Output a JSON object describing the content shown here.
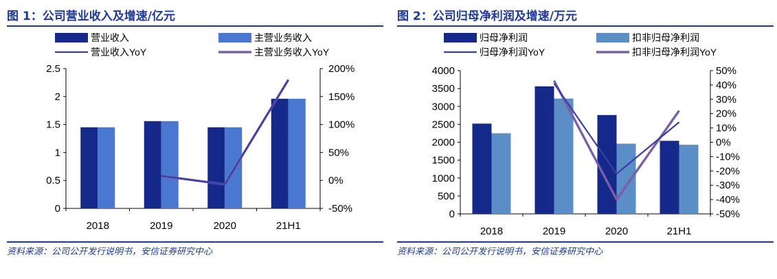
{
  "panels": [
    {
      "title": "图 1：公司营业收入及增速/亿元",
      "source": "资料来源：公司公开发行说明书，安信证券研究中心"
    },
    {
      "title": "图 2：公司归母净利润及增速/万元",
      "source": "资料来源：公司公开发行说明书，安信证券研究中心"
    }
  ],
  "colors": {
    "title": "#1f3a93",
    "bar_primary": "#15298a",
    "bar_secondary_left": "#4a78d0",
    "bar_secondary_right": "#5b8dc7",
    "line_primary": "#3a3fa8",
    "line_secondary": "#7a5fa6"
  },
  "chart_data": [
    {
      "type": "bar",
      "categories": [
        "2018",
        "2019",
        "2020",
        "21H1"
      ],
      "series": [
        {
          "name": "营业收入",
          "kind": "bar",
          "axis": "left",
          "values": [
            1.45,
            1.56,
            1.45,
            1.96
          ]
        },
        {
          "name": "主营业务收入",
          "kind": "bar",
          "axis": "left",
          "values": [
            1.45,
            1.56,
            1.45,
            1.96
          ]
        },
        {
          "name": "营业收入YoY",
          "kind": "line",
          "axis": "right",
          "values": [
            null,
            8,
            -7,
            180
          ]
        },
        {
          "name": "主营业务收入YoY",
          "kind": "line",
          "axis": "right",
          "values": [
            null,
            8,
            -7,
            180
          ]
        }
      ],
      "y_left": {
        "min": 0,
        "max": 2.5,
        "ticks": [
          "0",
          "0.5",
          "1",
          "1.5",
          "2",
          "2.5"
        ],
        "tick_values": [
          0,
          0.5,
          1,
          1.5,
          2,
          2.5
        ]
      },
      "y_right": {
        "min": -50,
        "max": 200,
        "ticks": [
          "-50%",
          "0%",
          "50%",
          "100%",
          "150%",
          "200%"
        ],
        "tick_values": [
          -50,
          0,
          50,
          100,
          150,
          200
        ]
      },
      "legend": "top",
      "grid": false
    },
    {
      "type": "bar",
      "categories": [
        "2018",
        "2019",
        "2020",
        "21H1"
      ],
      "series": [
        {
          "name": "归母净利润",
          "kind": "bar",
          "axis": "left",
          "values": [
            2520,
            3560,
            2760,
            2040
          ]
        },
        {
          "name": "扣非归母净利润",
          "kind": "bar",
          "axis": "left",
          "values": [
            2250,
            3220,
            1960,
            1930
          ]
        },
        {
          "name": "归母净利润YoY",
          "kind": "line",
          "axis": "right",
          "values": [
            null,
            41,
            -22,
            14
          ]
        },
        {
          "name": "扣非归母净利润YoY",
          "kind": "line",
          "axis": "right",
          "values": [
            null,
            43,
            -40,
            22
          ]
        }
      ],
      "y_left": {
        "min": 0,
        "max": 4000,
        "ticks": [
          "0",
          "500",
          "1000",
          "1500",
          "2000",
          "2500",
          "3000",
          "3500",
          "4000"
        ],
        "tick_values": [
          0,
          500,
          1000,
          1500,
          2000,
          2500,
          3000,
          3500,
          4000
        ]
      },
      "y_right": {
        "min": -50,
        "max": 50,
        "ticks": [
          "-50%",
          "-40%",
          "-30%",
          "-20%",
          "-10%",
          "0%",
          "10%",
          "20%",
          "30%",
          "40%",
          "50%"
        ],
        "tick_values": [
          -50,
          -40,
          -30,
          -20,
          -10,
          0,
          10,
          20,
          30,
          40,
          50
        ]
      },
      "legend": "top",
      "grid": false
    }
  ]
}
